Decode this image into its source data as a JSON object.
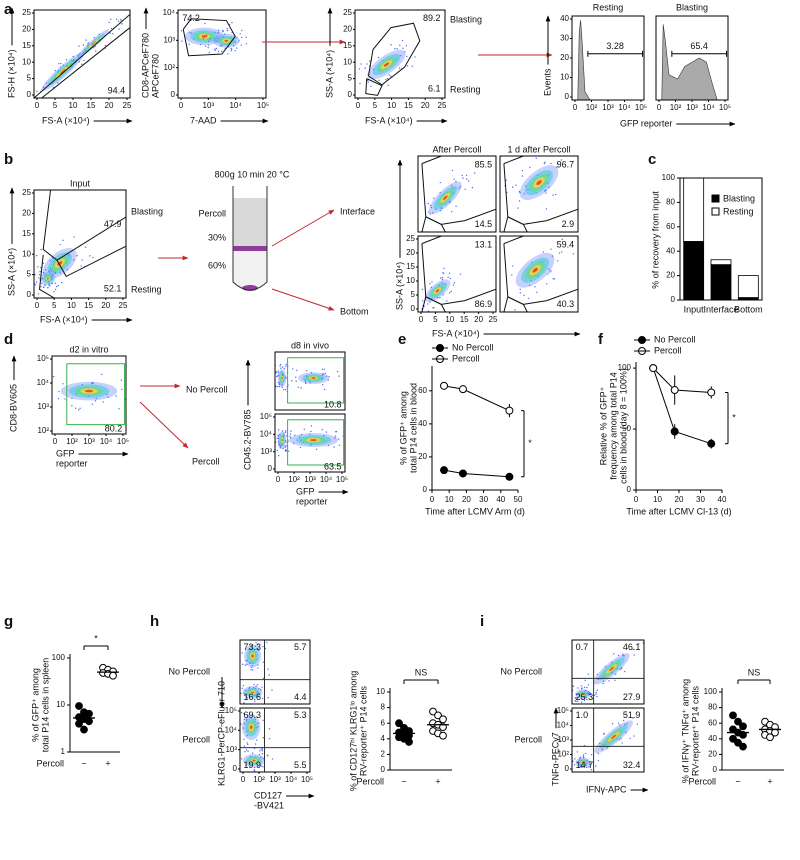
{
  "a": {
    "label": "a",
    "plots": [
      {
        "y_label": "FS-H (×10⁴)",
        "x_label": "FS-A (×10⁴)",
        "xticks": [
          0,
          5,
          10,
          15,
          20,
          25
        ],
        "yticks": [
          0,
          5,
          10,
          15,
          20,
          25
        ],
        "gates": [
          94.4
        ]
      },
      {
        "y_label": [
          "CD8-APCeF780",
          "APCeF780"
        ],
        "x_label": "7-AAD",
        "xticks": [
          "0",
          "10³",
          "10⁴",
          "10⁵"
        ],
        "yticks": [
          "0",
          "10²",
          "10³",
          "10⁴"
        ],
        "gates": [
          74.2
        ]
      },
      {
        "y_label": "SS-A (×10⁴)",
        "x_label": "FS-A (×10⁴)",
        "xticks": [
          0,
          5,
          10,
          15,
          20,
          25
        ],
        "yticks": [
          0,
          5,
          10,
          15,
          20,
          25
        ],
        "gates": [
          89.2,
          6.1
        ],
        "gate_names": [
          "Blasting",
          "Resting"
        ]
      }
    ],
    "histograms": {
      "titles": [
        "Resting",
        "Blasting"
      ],
      "y_label": "Events",
      "x_label": "GFP reporter",
      "yticks": [
        0,
        10,
        20,
        30,
        40
      ],
      "xticks": [
        "0",
        "10²",
        "10³",
        "10⁴",
        "10⁵"
      ],
      "gates": [
        3.28,
        65.4
      ]
    }
  },
  "b": {
    "label": "b",
    "input": {
      "title": "Input",
      "y_label": "SS-A (×10⁴)",
      "x_label": "FS-A (×10⁴)",
      "xticks": [
        0,
        5,
        10,
        15,
        20,
        25
      ],
      "yticks": [
        0,
        5,
        10,
        15,
        20,
        25
      ],
      "gates": [
        47.9,
        52.1
      ],
      "gate_names": [
        "Blasting",
        "Resting"
      ]
    },
    "protocol": {
      "condition": "800g 10 min 20 °C",
      "layers": [
        "Percoll",
        "30%",
        "60%"
      ],
      "fractions": [
        "Interface",
        "Bottom"
      ]
    },
    "grid": {
      "titles": [
        "After Percoll",
        "1 d after Percoll"
      ],
      "y_label": "SS-A (×10⁴)",
      "x_label": "FS-A (×10⁴)",
      "xticks": [
        0,
        5,
        10,
        15,
        20,
        25
      ],
      "yticks": [
        0,
        5,
        10,
        15,
        20,
        25
      ],
      "plots": [
        {
          "gates": [
            85.5,
            14.5
          ]
        },
        {
          "gates": [
            96.7,
            2.9
          ]
        },
        {
          "gates": [
            13.1,
            86.9
          ]
        },
        {
          "gates": [
            59.4,
            40.3
          ]
        }
      ]
    }
  },
  "c": {
    "label": "c",
    "y_label": "% of recovery from input",
    "categories": [
      "Input",
      "Interface",
      "Bottom"
    ],
    "series": [
      {
        "name": "Blasting",
        "color": "#000000",
        "values": [
          48,
          29,
          2
        ]
      },
      {
        "name": "Resting",
        "color": "#ffffff",
        "values": [
          52,
          4,
          18
        ]
      }
    ],
    "ylim": [
      0,
      100
    ],
    "yticks": [
      0,
      20,
      40,
      60,
      80,
      100
    ]
  },
  "d": {
    "label": "d",
    "in_vitro": {
      "title": "d2 in vitro",
      "y_label": "CD8-BV605",
      "x_label": [
        "GFP",
        "reporter"
      ],
      "yticks": [
        "10²",
        "10³",
        "10⁴",
        "10⁵"
      ],
      "xticks": [
        "0",
        "10²",
        "10³",
        "10⁴",
        "10⁵"
      ],
      "gates": [
        80.2
      ]
    },
    "arms": [
      "No Percoll",
      "Percoll"
    ],
    "in_vivo": {
      "title": "d8 in vivo",
      "y_label": "CD45.2-BV785",
      "x_label": [
        "GFP",
        "reporter"
      ],
      "yticks": [
        "0",
        "10³",
        "10⁴",
        "10⁵"
      ],
      "xticks": [
        "0",
        "10²",
        "10³",
        "10⁴",
        "10⁵"
      ],
      "gates": [
        10.8,
        63.5
      ]
    }
  },
  "e": {
    "label": "e",
    "y_label": [
      "% of GFP⁺ among",
      "total P14 cells in blood"
    ],
    "x_label": "Time after LCMV Arm (d)",
    "xlim": [
      0,
      50
    ],
    "xticks": [
      0,
      10,
      20,
      30,
      40,
      50
    ],
    "ylim": [
      0,
      75
    ],
    "yticks": [
      0,
      20,
      40,
      60
    ],
    "significance": "*",
    "series": [
      {
        "name": "No Percoll",
        "color": "#000000",
        "x": [
          7,
          18,
          45
        ],
        "values": [
          12,
          10,
          8
        ],
        "errors": [
          1,
          1,
          1
        ]
      },
      {
        "name": "Percoll",
        "color": "#ffffff",
        "x": [
          7,
          18,
          45
        ],
        "values": [
          63,
          61,
          48
        ],
        "errors": [
          1,
          1,
          4
        ]
      }
    ]
  },
  "f": {
    "label": "f",
    "y_label": [
      "Relative % of GFP⁺",
      "frequency among total P14",
      "cells in blood (day 8 = 100%)"
    ],
    "x_label": "Time after LCMV Cl-13 (d)",
    "xlim": [
      0,
      40
    ],
    "xticks": [
      0,
      10,
      20,
      30,
      40
    ],
    "ylim": [
      0,
      105
    ],
    "yticks": [
      0,
      50,
      100
    ],
    "significance": "*",
    "series": [
      {
        "name": "No Percoll",
        "color": "#000000",
        "x": [
          8,
          18,
          35
        ],
        "values": [
          100,
          48,
          38
        ],
        "errors": [
          0,
          6,
          4
        ]
      },
      {
        "name": "Percoll",
        "color": "#ffffff",
        "x": [
          8,
          18,
          35
        ],
        "values": [
          100,
          82,
          80
        ],
        "errors": [
          0,
          12,
          5
        ]
      }
    ]
  },
  "g": {
    "label": "g",
    "y_label": [
      "% of GFP⁺ among",
      "total P14 cells in spleen"
    ],
    "log": true,
    "ylim": [
      1,
      100
    ],
    "yticks": [
      1,
      10,
      100
    ],
    "x_title": "Percoll",
    "significance": "*",
    "groups": [
      {
        "label": "−",
        "color": "#000000",
        "values": [
          9.5,
          7,
          6.5,
          5.5,
          5,
          4.5,
          4,
          3
        ],
        "mean": 5.3
      },
      {
        "label": "+",
        "color": "#ffffff",
        "values": [
          62,
          56,
          52,
          48,
          46,
          42
        ],
        "mean": 50
      }
    ]
  },
  "h": {
    "label": "h",
    "rows": [
      "No Percoll",
      "Percoll"
    ],
    "flow": {
      "y_label": "KLRG1-PerCP-eFluor 710",
      "x_label": [
        "CD127",
        "-BV421"
      ],
      "yticks": [
        "0",
        "10³",
        "10⁴",
        "10⁵"
      ],
      "xticks": [
        "0",
        "10²",
        "10³",
        "10⁴",
        "10⁵"
      ],
      "quadrants": [
        [
          73.3,
          5.7,
          16.6,
          4.4
        ],
        [
          69.3,
          5.3,
          19.9,
          5.5
        ]
      ]
    },
    "dots": {
      "y_label": [
        "% of CD127ʰⁱ KLRG1ˡᵒ among",
        "RV-reporter⁺ P14 cells"
      ],
      "ylim": [
        0,
        10
      ],
      "yticks": [
        0,
        2,
        4,
        6,
        8,
        10
      ],
      "x_title": "Percoll",
      "significance": "NS",
      "groups": [
        {
          "label": "−",
          "color": "#000000",
          "values": [
            6,
            5.4,
            5,
            4.8,
            4.6,
            4.4,
            4.2,
            4,
            3.6
          ],
          "mean": 4.7
        },
        {
          "label": "+",
          "color": "#ffffff",
          "values": [
            7.5,
            7,
            6.5,
            6,
            5.8,
            5.5,
            5,
            4.7,
            4.4
          ],
          "mean": 5.8
        }
      ]
    }
  },
  "i": {
    "label": "i",
    "rows": [
      "No Percoll",
      "Percoll"
    ],
    "flow": {
      "y_label": "TNFα-PECy7",
      "x_label": "IFNγ-APC",
      "yticks": [
        "0",
        "10²",
        "10³",
        "10⁴",
        "10⁵"
      ],
      "quadrants": [
        [
          0.7,
          46.1,
          25.3,
          27.9
        ],
        [
          {
            "value": 1.0,
            "label": "1.0"
          },
          51.9,
          14.7,
          32.4
        ]
      ]
    },
    "dots": {
      "y_label": [
        "% of IFNγ⁺ TNFα⁺ among",
        "RV-reporter⁺ P14 cells"
      ],
      "ylim": [
        0,
        100
      ],
      "yticks": [
        0,
        20,
        40,
        60,
        80,
        100
      ],
      "x_title": "Percoll",
      "significance": "NS",
      "groups": [
        {
          "label": "−",
          "color": "#000000",
          "values": [
            70,
            62,
            56,
            52,
            48,
            45,
            40,
            35,
            30
          ],
          "mean": 48
        },
        {
          "label": "+",
          "color": "#ffffff",
          "values": [
            62,
            58,
            55,
            52,
            50,
            48,
            45,
            42
          ],
          "mean": 52
        }
      ]
    }
  }
}
